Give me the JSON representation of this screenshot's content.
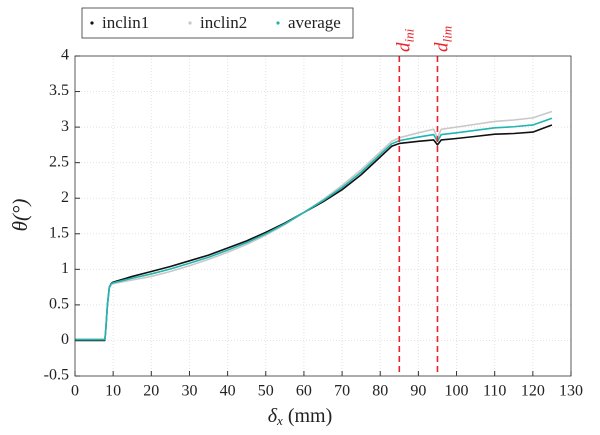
{
  "chart_data": {
    "type": "line",
    "ylabel": "θ(°)",
    "xlabel": {
      "symbol": "δ",
      "subscript": "x",
      "unit": "(mm)"
    },
    "x": [
      0,
      7.8,
      8,
      8.5,
      9,
      9.5,
      10,
      15,
      20,
      25,
      30,
      35,
      40,
      45,
      50,
      55,
      60,
      65,
      70,
      75,
      80,
      83,
      85,
      90,
      94,
      95,
      96,
      100,
      105,
      110,
      115,
      120,
      125
    ],
    "series": [
      {
        "name": "inclin1",
        "color": "#111111",
        "values": [
          0,
          0,
          0.1,
          0.5,
          0.75,
          0.8,
          0.82,
          0.9,
          0.97,
          1.04,
          1.12,
          1.2,
          1.3,
          1.4,
          1.52,
          1.65,
          1.8,
          1.95,
          2.12,
          2.33,
          2.58,
          2.73,
          2.77,
          2.8,
          2.82,
          2.75,
          2.82,
          2.84,
          2.87,
          2.9,
          2.91,
          2.93,
          3.03
        ]
      },
      {
        "name": "inclin2",
        "color": "#c8c8c8",
        "values": [
          0.02,
          0.02,
          0.1,
          0.5,
          0.74,
          0.79,
          0.8,
          0.85,
          0.9,
          0.97,
          1.05,
          1.14,
          1.24,
          1.35,
          1.48,
          1.63,
          1.8,
          1.98,
          2.18,
          2.4,
          2.65,
          2.8,
          2.85,
          2.92,
          2.97,
          2.85,
          2.97,
          3.0,
          3.04,
          3.08,
          3.1,
          3.13,
          3.22
        ]
      },
      {
        "name": "average",
        "color": "#1fb5b0",
        "values": [
          0.01,
          0.01,
          0.1,
          0.5,
          0.745,
          0.795,
          0.81,
          0.875,
          0.935,
          1.005,
          1.085,
          1.17,
          1.27,
          1.375,
          1.5,
          1.64,
          1.8,
          1.965,
          2.15,
          2.365,
          2.615,
          2.765,
          2.81,
          2.86,
          2.895,
          2.8,
          2.895,
          2.92,
          2.955,
          2.99,
          3.005,
          3.03,
          3.125
        ]
      }
    ],
    "vlines": [
      {
        "x": 85,
        "label": "d",
        "subscript": "ini",
        "color": "#e8232a"
      },
      {
        "x": 95,
        "label": "d",
        "subscript": "lim",
        "color": "#e8232a"
      }
    ],
    "xlim": [
      0,
      130
    ],
    "xticks": [
      0,
      10,
      20,
      30,
      40,
      50,
      60,
      70,
      80,
      90,
      100,
      110,
      120,
      130
    ],
    "ylim": [
      -0.5,
      4
    ],
    "yticks": [
      -0.5,
      0,
      0.5,
      1,
      1.5,
      2,
      2.5,
      3,
      3.5,
      4
    ],
    "grid": true,
    "legend": "top-left"
  }
}
